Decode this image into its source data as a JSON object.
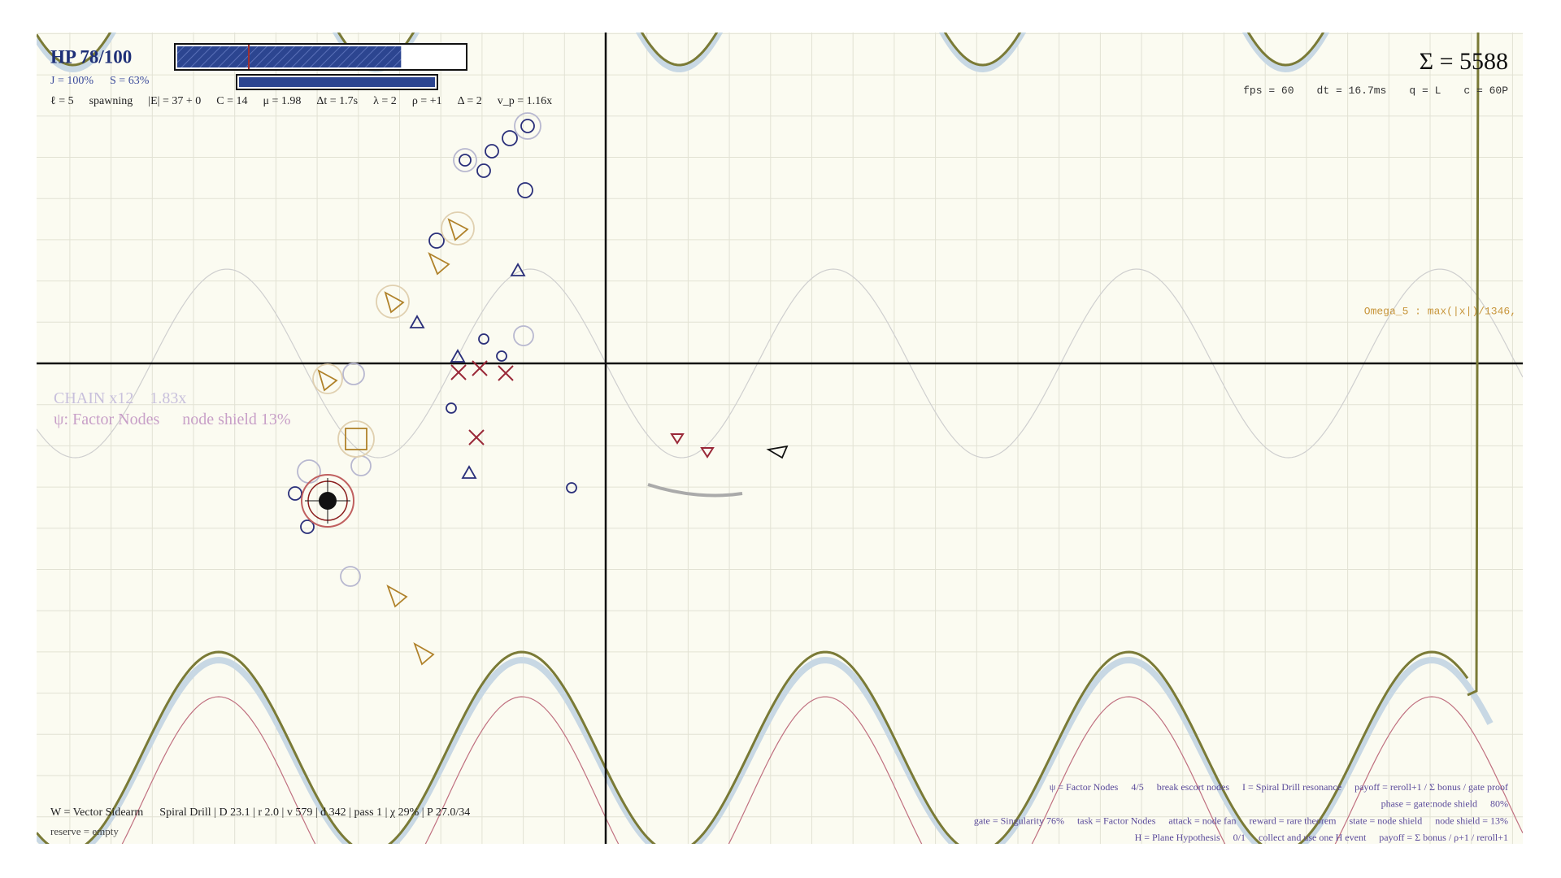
{
  "hud": {
    "hp": {
      "label": "HP 78/100",
      "value": 78,
      "max": 100
    },
    "stats_1": [
      "J = 100%",
      "S = 63%"
    ],
    "stats_2": [
      "ℓ = 5",
      "spawning",
      "|E| = 37 + 0",
      "C = 14",
      "μ = 1.98",
      "Δt = 1.7s",
      "λ = 2",
      "ρ = +1",
      "Δ = 2",
      "v_p = 1.16x"
    ],
    "score": "Σ = 5588",
    "perf": [
      "fps = 60",
      "dt = 16.7ms",
      "q = L",
      "c = 60P"
    ],
    "omega": "Omega_5 : max(|x|)/1346,"
  },
  "chain": {
    "combo": "CHAIN x12",
    "multiplier": "1.83x",
    "objective": "ψ: Factor Nodes",
    "shield": "node shield 13%"
  },
  "weapon": {
    "line": [
      "W = Vector Sidearm",
      "Spiral Drill | D 23.1 | r 2.0 | v 579 | d 342 | pass 1 | χ 29% | P 27.0/34"
    ],
    "reserve": "reserve = empty"
  },
  "objectives": [
    [
      "ψ = Factor Nodes",
      "4/5",
      "break escort nodes",
      "I = Spiral Drill resonance",
      "payoff = reroll+1 / Σ bonus / gate proof"
    ],
    [
      "phase = gate:node shield",
      "80%"
    ],
    [
      "gate = Singularity 76%",
      "task = Factor Nodes",
      "attack = node fan",
      "reward = rare theorem",
      "state = node shield",
      "node shield = 13%"
    ],
    [
      "H = Plane Hypothesis",
      "0/1",
      "collect and use one H event",
      "payoff = Σ bonus / ρ+1 / reroll+1"
    ]
  ]
}
